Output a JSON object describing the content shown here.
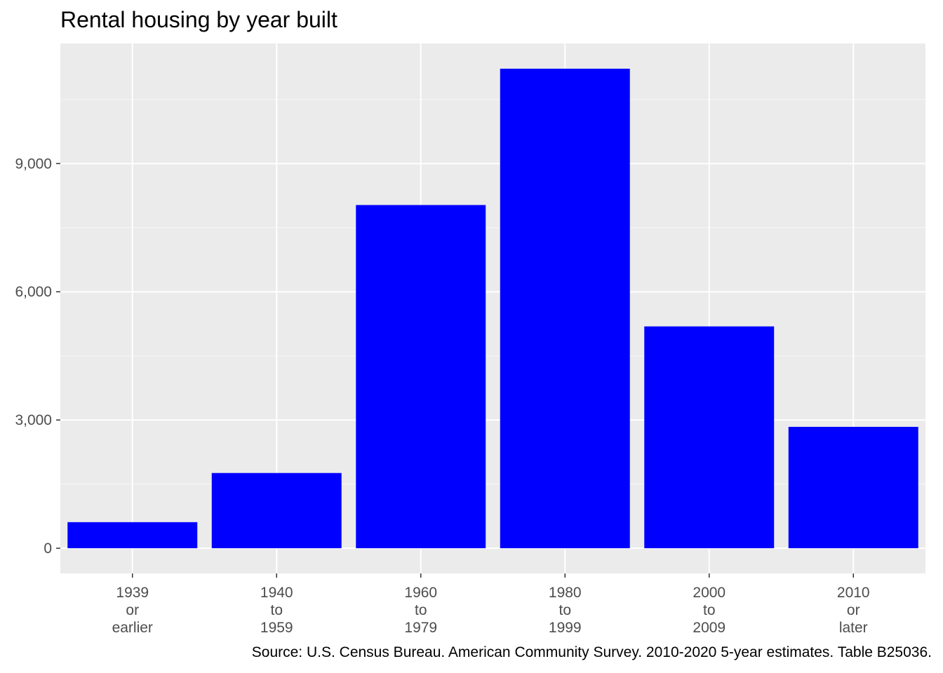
{
  "chart_data": {
    "type": "bar",
    "title": "Rental housing by year built",
    "caption": "Source: U.S. Census Bureau. American Community Survey. 2010-2020 5-year estimates. Table B25036.",
    "xlabel": "",
    "ylabel": "",
    "categories": [
      [
        "1939",
        "or",
        "earlier"
      ],
      [
        "1940",
        "to",
        "1959"
      ],
      [
        "1960",
        "to",
        "1979"
      ],
      [
        "1980",
        "to",
        "1999"
      ],
      [
        "2000",
        "to",
        "2009"
      ],
      [
        "2010",
        "or",
        "later"
      ]
    ],
    "values": [
      610,
      1760,
      8030,
      11220,
      5190,
      2840
    ],
    "ylim": [
      -590,
      11810
    ],
    "yticks": [
      0,
      3000,
      6000,
      9000
    ],
    "ytick_labels": [
      "0",
      "3,000",
      "6,000",
      "9,000"
    ],
    "grid": true,
    "legend": "none",
    "colors": {
      "bar": "#0000ff",
      "panel": "#ebebeb",
      "grid_major": "#ffffff",
      "grid_minor": "#f7f7f7",
      "tick_label": "#4d4d4d",
      "tick_mark": "#333333"
    }
  }
}
